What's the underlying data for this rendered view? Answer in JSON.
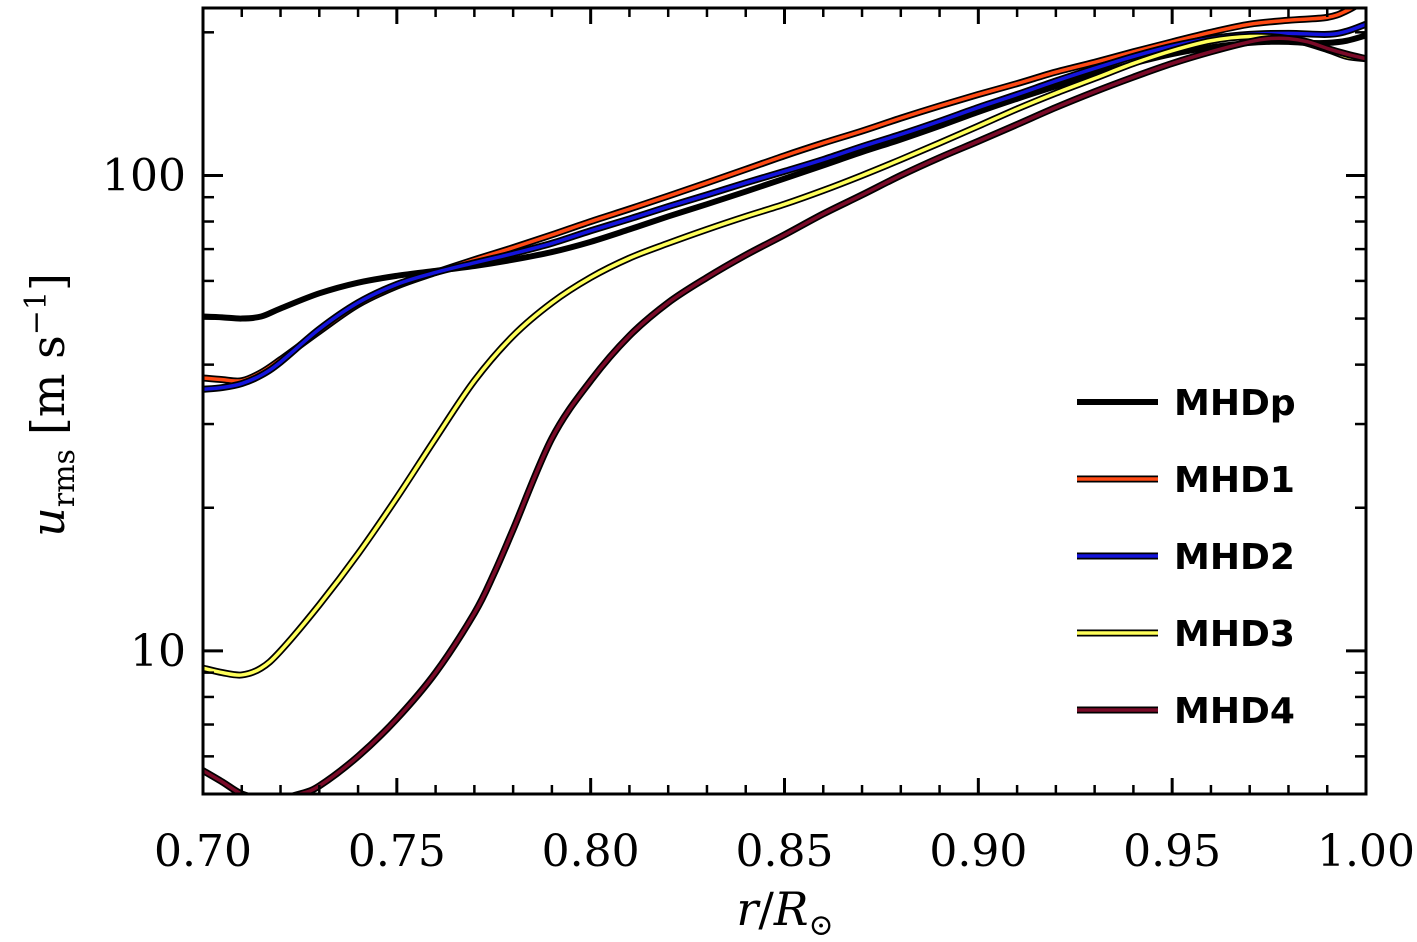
{
  "chart_data": {
    "type": "line",
    "title": "",
    "xlabel": "r/R⊙",
    "xlabel_parts": {
      "var": "r",
      "slash": "/",
      "R": "R",
      "sub": "⊙"
    },
    "ylabel": "u_rms [m s^-1]",
    "ylabel_parts": {
      "var": "u",
      "sub": "rms",
      "unit_open": "[m s",
      "exp": "−1",
      "unit_close": "]"
    },
    "xlim": [
      0.7,
      1.0
    ],
    "ylim": [
      5.0,
      225
    ],
    "yscale": "log",
    "x_ticks": [
      {
        "value": 0.7,
        "label": "0.70"
      },
      {
        "value": 0.75,
        "label": "0.75"
      },
      {
        "value": 0.8,
        "label": "0.80"
      },
      {
        "value": 0.85,
        "label": "0.85"
      },
      {
        "value": 0.9,
        "label": "0.90"
      },
      {
        "value": 0.95,
        "label": "0.95"
      },
      {
        "value": 1.0,
        "label": "1.00"
      }
    ],
    "y_ticks": [
      {
        "value": 10,
        "label": "10"
      },
      {
        "value": 100,
        "label": "100"
      }
    ],
    "legend_position": "lower-right",
    "series": [
      {
        "name": "MHDp",
        "color": "#000000",
        "outlined": false,
        "x": [
          0.7,
          0.705,
          0.71,
          0.715,
          0.72,
          0.73,
          0.74,
          0.75,
          0.76,
          0.77,
          0.78,
          0.79,
          0.8,
          0.81,
          0.82,
          0.83,
          0.84,
          0.85,
          0.86,
          0.87,
          0.88,
          0.89,
          0.9,
          0.91,
          0.92,
          0.93,
          0.94,
          0.95,
          0.96,
          0.97,
          0.975,
          0.98,
          0.985,
          0.99,
          0.995,
          1.0
        ],
        "values": [
          50.5,
          50.3,
          50.0,
          50.5,
          52.5,
          56.5,
          59.5,
          61.5,
          63.0,
          64.5,
          66.5,
          69.0,
          72.5,
          77.0,
          82.0,
          87.0,
          92.5,
          98.5,
          105,
          112,
          119,
          127,
          136,
          145,
          154,
          163,
          172,
          180,
          186,
          190,
          191,
          191,
          190,
          190,
          192,
          197
        ]
      },
      {
        "name": "MHD1",
        "color": "#ff4a14",
        "outlined": true,
        "x": [
          0.7,
          0.705,
          0.71,
          0.715,
          0.72,
          0.73,
          0.74,
          0.75,
          0.76,
          0.77,
          0.78,
          0.79,
          0.8,
          0.81,
          0.82,
          0.83,
          0.84,
          0.85,
          0.86,
          0.87,
          0.88,
          0.89,
          0.9,
          0.91,
          0.92,
          0.93,
          0.94,
          0.95,
          0.96,
          0.97,
          0.98,
          0.99,
          0.995,
          1.0
        ],
        "values": [
          37.5,
          37.2,
          37.0,
          38.5,
          41.0,
          47.0,
          53.5,
          58.5,
          62.5,
          66.5,
          70.5,
          75.0,
          80.0,
          85.0,
          90.5,
          96.5,
          103,
          110,
          117,
          124,
          132,
          140,
          148,
          156,
          165,
          173,
          182,
          191,
          200,
          208,
          212,
          215,
          222,
          234
        ]
      },
      {
        "name": "MHD2",
        "color": "#1414dc",
        "outlined": true,
        "x": [
          0.7,
          0.705,
          0.71,
          0.715,
          0.72,
          0.73,
          0.74,
          0.75,
          0.76,
          0.77,
          0.78,
          0.79,
          0.8,
          0.81,
          0.82,
          0.83,
          0.84,
          0.85,
          0.86,
          0.87,
          0.88,
          0.89,
          0.9,
          0.91,
          0.92,
          0.93,
          0.94,
          0.95,
          0.96,
          0.97,
          0.98,
          0.99,
          0.995,
          1.0
        ],
        "values": [
          35.5,
          35.8,
          36.5,
          38.0,
          40.5,
          47.5,
          54.0,
          59.0,
          62.5,
          65.5,
          68.5,
          72.0,
          76.5,
          81.0,
          86.0,
          91.0,
          96.5,
          102,
          108,
          115,
          122,
          130,
          139,
          148,
          158,
          168,
          178,
          187,
          194,
          198,
          199,
          198,
          201,
          208
        ]
      },
      {
        "name": "MHD3",
        "color": "#ffff5a",
        "outlined": true,
        "x": [
          0.7,
          0.705,
          0.71,
          0.715,
          0.72,
          0.73,
          0.74,
          0.75,
          0.76,
          0.77,
          0.78,
          0.79,
          0.8,
          0.81,
          0.82,
          0.83,
          0.84,
          0.85,
          0.86,
          0.87,
          0.88,
          0.89,
          0.9,
          0.91,
          0.92,
          0.93,
          0.94,
          0.95,
          0.96,
          0.97,
          0.98,
          0.99,
          0.995,
          1.0
        ],
        "values": [
          9.2,
          9.0,
          8.9,
          9.2,
          10.0,
          12.5,
          16.0,
          21.0,
          28.0,
          37.0,
          46.0,
          54.0,
          61.0,
          67.0,
          72.0,
          77.0,
          82.0,
          87.0,
          93.0,
          100,
          108,
          117,
          127,
          138,
          149,
          160,
          172,
          183,
          192,
          196,
          194,
          184,
          178,
          176
        ]
      },
      {
        "name": "MHD4",
        "color": "#7a0a28",
        "outlined": true,
        "x": [
          0.7,
          0.705,
          0.71,
          0.715,
          0.72,
          0.725,
          0.73,
          0.74,
          0.75,
          0.76,
          0.77,
          0.775,
          0.78,
          0.79,
          0.8,
          0.81,
          0.82,
          0.83,
          0.84,
          0.85,
          0.86,
          0.87,
          0.88,
          0.89,
          0.9,
          0.91,
          0.92,
          0.93,
          0.94,
          0.95,
          0.96,
          0.97,
          0.975,
          0.98,
          0.985,
          0.99,
          0.995,
          1.0
        ],
        "values": [
          5.6,
          5.3,
          5.0,
          4.9,
          4.9,
          5.0,
          5.2,
          6.0,
          7.2,
          9.0,
          12.0,
          14.5,
          18.0,
          28.0,
          37.0,
          46.0,
          54.0,
          61.0,
          68.0,
          75.0,
          83.0,
          91.0,
          100,
          109,
          118,
          128,
          139,
          150,
          161,
          172,
          182,
          191,
          194,
          194,
          191,
          185,
          180,
          176
        ]
      }
    ]
  }
}
